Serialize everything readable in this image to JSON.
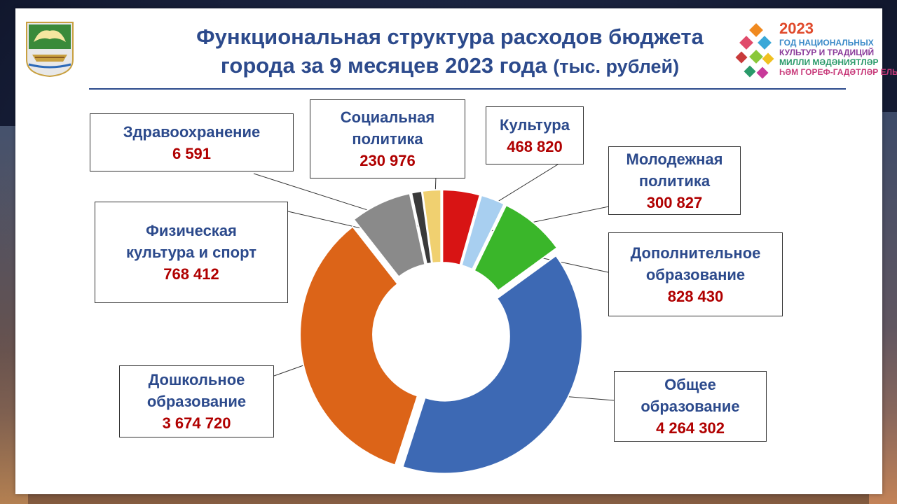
{
  "title": {
    "line1": "Функциональная структура расходов бюджета",
    "line2": "города за 9 месяцев 2023 года",
    "unit": "(тыс. рублей)"
  },
  "logo_right": {
    "year": "2023",
    "line1": "ГОД НАЦИОНАЛЬНЫХ",
    "line2": "КУЛЬТУР И ТРАДИЦИЙ",
    "line3": "МИЛЛИ МӘДӘНИЯТЛӘР",
    "line4": "ҺӘМ ГОРЕФ-ГАДӘТЛӘР ЕЛЫ"
  },
  "colors": {
    "title": "#2c4a8c",
    "value": "#b00000"
  },
  "chart_data": {
    "type": "pie",
    "variant": "donut",
    "title": "Функциональная структура расходов бюджета города за 9 месяцев 2023 года (тыс. рублей)",
    "unit": "тыс. рублей",
    "slices": [
      {
        "name": "Культура",
        "value": 468820,
        "label_value": "468 820",
        "color": "#d81414"
      },
      {
        "name": "Молодежная политика",
        "value": 300827,
        "label_value": "300 827",
        "color": "#a8cff0"
      },
      {
        "name": "Дополнительное образование",
        "value": 828430,
        "label_value": "828 430",
        "color": "#3ab62a"
      },
      {
        "name": "Общее образование",
        "value": 4264302,
        "label_value": "4 264 302",
        "color": "#3d69b4"
      },
      {
        "name": "Дошкольное образование",
        "value": 3674720,
        "label_value": "3 674 720",
        "color": "#dc6418"
      },
      {
        "name": "Физическая культура и спорт",
        "value": 768412,
        "label_value": "768 412",
        "color": "#8a8a8a"
      },
      {
        "name": "Здравоохранение",
        "value": 6591,
        "label_value": "6 591",
        "color": "#3a3a3a"
      },
      {
        "name": "Социальная политика",
        "value": 230976,
        "label_value": "230 976",
        "color": "#f0d070"
      }
    ]
  },
  "labels": [
    {
      "id": "health",
      "name_lines": [
        "Здравоохранение"
      ],
      "value": "6 591"
    },
    {
      "id": "social",
      "name_lines": [
        "Социальная",
        "политика"
      ],
      "value": "230 976"
    },
    {
      "id": "culture",
      "name_lines": [
        "Культура"
      ],
      "value": "468 820"
    },
    {
      "id": "youth",
      "name_lines": [
        "Молодежная",
        "политика"
      ],
      "value": "300 827"
    },
    {
      "id": "sport",
      "name_lines": [
        "Физическая",
        "культура и спорт"
      ],
      "value": "768 412"
    },
    {
      "id": "addedu",
      "name_lines": [
        "Дополнительное",
        "образование"
      ],
      "value": "828 430"
    },
    {
      "id": "preschool",
      "name_lines": [
        "Дошкольное",
        "образование"
      ],
      "value": "3 674 720"
    },
    {
      "id": "general",
      "name_lines": [
        "Общее",
        "образование"
      ],
      "value": "4 264 302"
    }
  ]
}
